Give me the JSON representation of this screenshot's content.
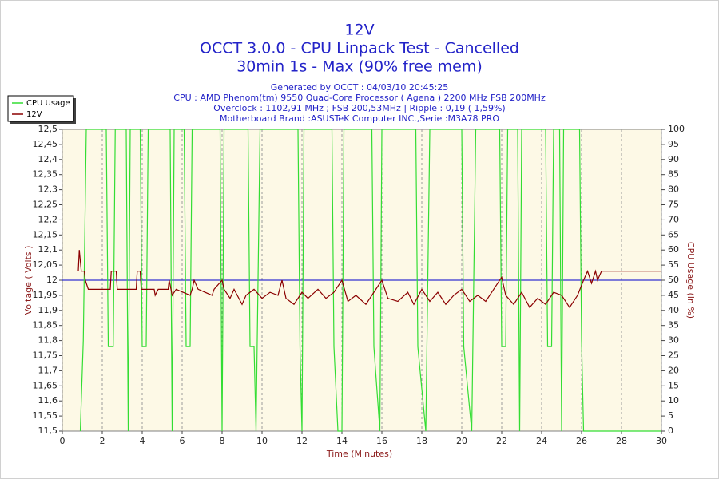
{
  "chart_data": {
    "type": "line",
    "title": "12V",
    "subtitle": [
      "OCCT 3.0.0 - CPU Linpack Test - Cancelled",
      "30min 1s - Max (90% free mem)"
    ],
    "info": [
      "Generated by OCCT : 04/03/10 20:45:25",
      "CPU : AMD Phenom(tm) 9550 Quad-Core Processor ( Agena ) 2200 MHz FSB 200MHz",
      "Overclock : 1102,91 MHz ; FSB 200,53MHz | Ripple : 0,19 ( 1,59%)",
      "Motherboard Brand :ASUSTeK Computer INC.,Serie :M3A78 PRO"
    ],
    "xlabel": "Time (Minutes)",
    "ylabel": "Voltage ( Volts )",
    "y2label": "CPU Usage (in %)",
    "xlim": [
      0,
      30
    ],
    "xticks": [
      0,
      2,
      4,
      6,
      8,
      10,
      12,
      14,
      16,
      18,
      20,
      22,
      24,
      26,
      28,
      30
    ],
    "ylim": [
      11.5,
      12.5
    ],
    "yticks": [
      {
        "value": 11.5,
        "label": "11,5"
      },
      {
        "value": 11.55,
        "label": "11,55"
      },
      {
        "value": 11.6,
        "label": "11,6"
      },
      {
        "value": 11.65,
        "label": "11,65"
      },
      {
        "value": 11.7,
        "label": "11,7"
      },
      {
        "value": 11.75,
        "label": "11,75"
      },
      {
        "value": 11.8,
        "label": "11,8"
      },
      {
        "value": 11.85,
        "label": "11,85"
      },
      {
        "value": 11.9,
        "label": "11,9"
      },
      {
        "value": 11.95,
        "label": "11,95"
      },
      12,
      {
        "value": 12.05,
        "label": "12,05"
      },
      {
        "value": 12.1,
        "label": "12,1"
      },
      {
        "value": 12.15,
        "label": "12,15"
      },
      {
        "value": 12.2,
        "label": "12,2"
      },
      {
        "value": 12.25,
        "label": "12,25"
      },
      {
        "value": 12.3,
        "label": "12,3"
      },
      {
        "value": 12.35,
        "label": "12,35"
      },
      {
        "value": 12.4,
        "label": "12,4"
      },
      {
        "value": 12.45,
        "label": "12,45"
      },
      {
        "value": 12.5,
        "label": "12,5"
      }
    ],
    "y2lim": [
      0,
      100
    ],
    "y2ticks": [
      0,
      5,
      10,
      15,
      20,
      25,
      30,
      35,
      40,
      45,
      50,
      55,
      60,
      65,
      70,
      75,
      80,
      85,
      90,
      95,
      100
    ],
    "grid": "x",
    "reference_line": {
      "value": 12,
      "color": "#0000cc"
    },
    "legend": "top-left",
    "series": [
      {
        "name": "CPU Usage",
        "color": "#33dd33",
        "axis": "y2",
        "x": [
          0.9,
          1.05,
          1.2,
          2.2,
          2.3,
          2.55,
          2.65,
          3.2,
          3.3,
          3.4,
          3.9,
          4.0,
          4.2,
          4.3,
          5.4,
          5.5,
          5.6,
          6.1,
          6.2,
          6.4,
          6.5,
          7.9,
          8.0,
          8.1,
          9.3,
          9.4,
          9.6,
          9.7,
          9.9,
          11.8,
          11.9,
          12.0,
          12.1,
          13.5,
          13.6,
          13.8,
          14.0,
          14.1,
          15.5,
          15.6,
          15.9,
          16.0,
          17.7,
          17.8,
          18.2,
          18.4,
          20.0,
          20.1,
          20.5,
          20.7,
          21.9,
          22.0,
          22.2,
          22.3,
          22.8,
          22.9,
          23.0,
          24.2,
          24.3,
          24.5,
          24.6,
          24.9,
          25.0,
          25.1,
          25.9,
          26.0,
          26.1,
          30.0
        ],
        "values": [
          0,
          30,
          100,
          100,
          28,
          28,
          100,
          100,
          0,
          100,
          100,
          28,
          28,
          100,
          100,
          0,
          100,
          100,
          28,
          28,
          100,
          100,
          0,
          100,
          100,
          28,
          28,
          0,
          100,
          100,
          28,
          0,
          100,
          100,
          28,
          0,
          0,
          100,
          100,
          28,
          0,
          100,
          100,
          28,
          0,
          100,
          100,
          28,
          0,
          100,
          100,
          28,
          28,
          100,
          100,
          0,
          100,
          100,
          28,
          28,
          100,
          100,
          0,
          100,
          100,
          30,
          0,
          0
        ]
      },
      {
        "name": "12V",
        "color": "#8b0000",
        "axis": "y",
        "x": [
          0.8,
          0.85,
          0.95,
          1.1,
          1.15,
          1.3,
          2.4,
          2.45,
          2.7,
          2.75,
          3.7,
          3.75,
          3.9,
          3.95,
          4.6,
          4.65,
          4.8,
          5.3,
          5.35,
          5.5,
          5.7,
          6.4,
          6.5,
          6.6,
          6.8,
          7.5,
          7.6,
          8.0,
          8.1,
          8.4,
          8.6,
          9.0,
          9.2,
          9.6,
          10.0,
          10.4,
          10.8,
          11.0,
          11.2,
          11.6,
          12.0,
          12.3,
          12.8,
          13.2,
          13.6,
          14.0,
          14.3,
          14.7,
          15.2,
          15.6,
          16.0,
          16.3,
          16.8,
          17.3,
          17.6,
          18.0,
          18.4,
          18.8,
          19.2,
          19.6,
          20.0,
          20.4,
          20.8,
          21.2,
          21.6,
          22.0,
          22.2,
          22.6,
          23.0,
          23.4,
          23.8,
          24.2,
          24.6,
          25.0,
          25.4,
          25.8,
          26.1,
          26.3,
          26.5,
          26.7,
          26.8,
          27.0,
          30.0
        ],
        "values": [
          12.03,
          12.1,
          12.03,
          12.03,
          12.0,
          11.97,
          11.97,
          12.03,
          12.03,
          11.97,
          11.97,
          12.03,
          12.03,
          11.97,
          11.97,
          11.95,
          11.97,
          11.97,
          12.0,
          11.95,
          11.97,
          11.95,
          11.97,
          12.0,
          11.97,
          11.95,
          11.97,
          12.0,
          11.97,
          11.94,
          11.97,
          11.92,
          11.95,
          11.97,
          11.94,
          11.96,
          11.95,
          12.0,
          11.94,
          11.92,
          11.96,
          11.94,
          11.97,
          11.94,
          11.96,
          12.0,
          11.93,
          11.95,
          11.92,
          11.96,
          12.0,
          11.94,
          11.93,
          11.96,
          11.92,
          11.97,
          11.93,
          11.96,
          11.92,
          11.95,
          11.97,
          11.93,
          11.95,
          11.93,
          11.97,
          12.01,
          11.95,
          11.92,
          11.96,
          11.91,
          11.94,
          11.92,
          11.96,
          11.95,
          11.91,
          11.95,
          12.0,
          12.03,
          11.99,
          12.03,
          12.0,
          12.03,
          12.03
        ]
      }
    ]
  }
}
